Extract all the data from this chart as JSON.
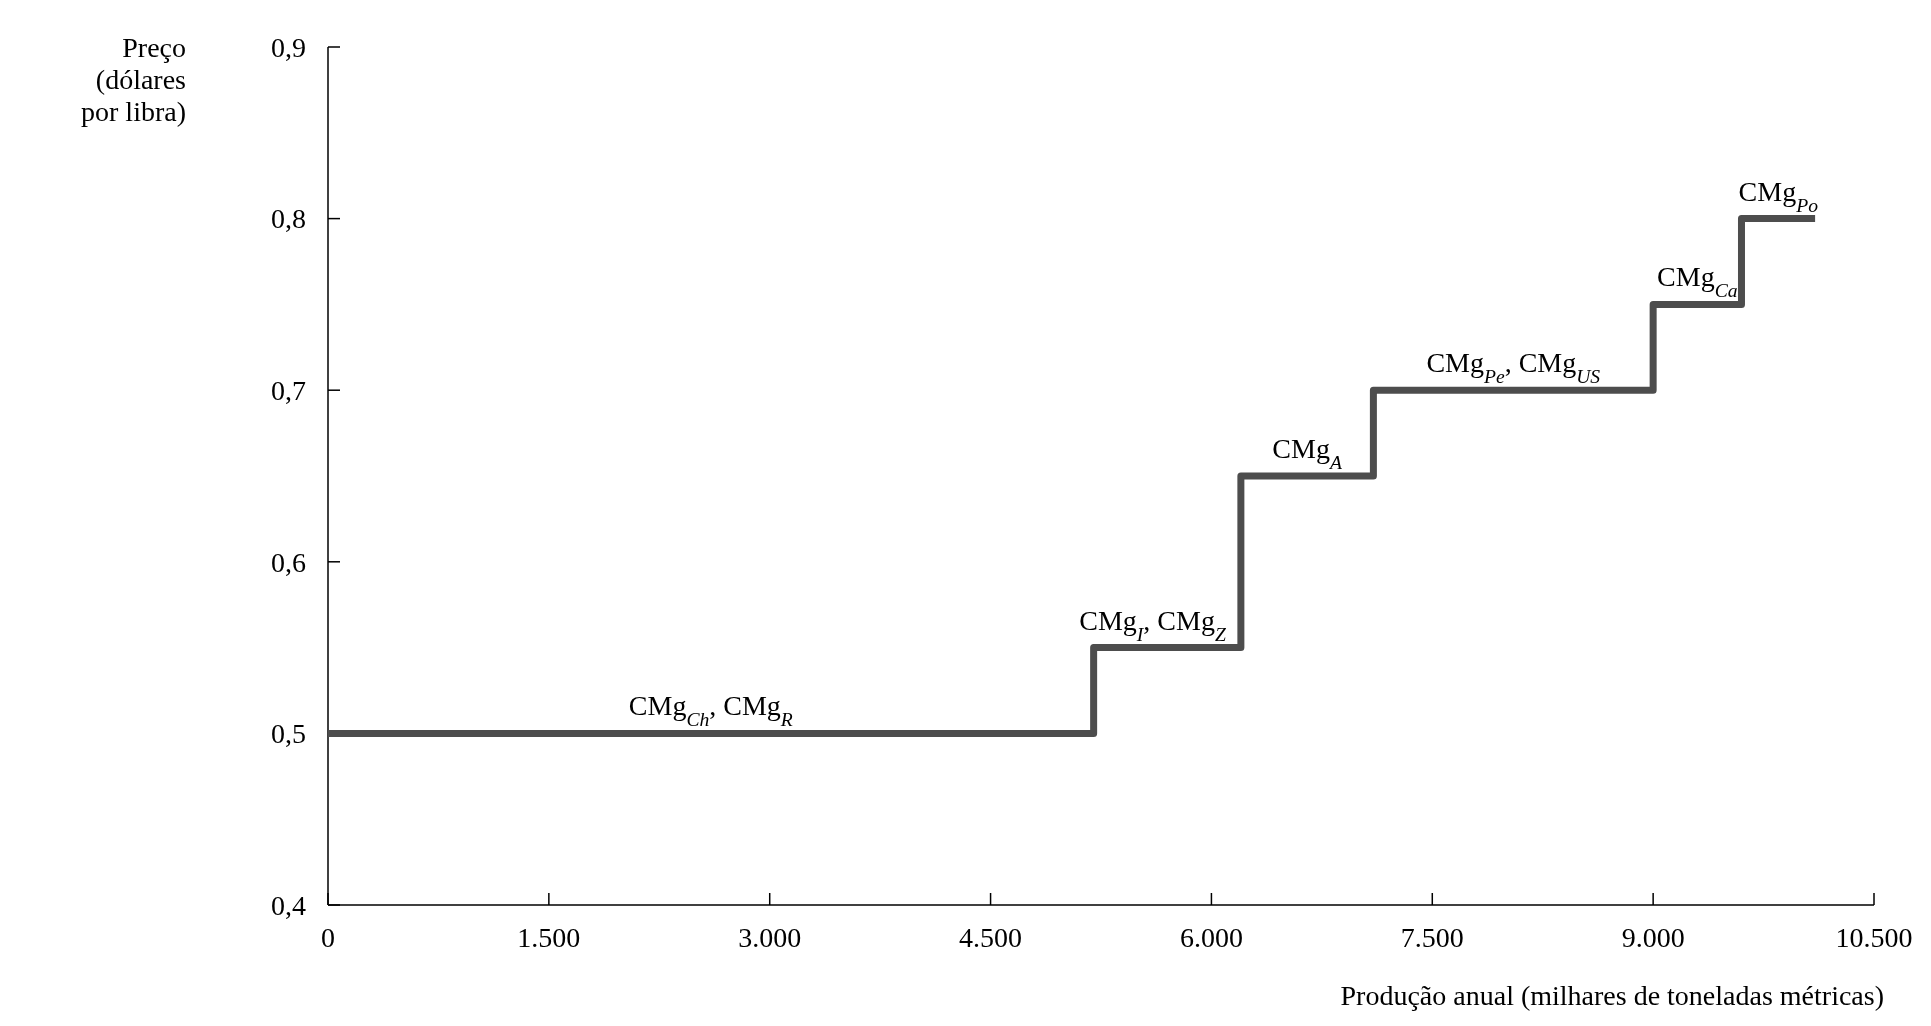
{
  "chart_data": {
    "type": "step",
    "xlabel": "Produção anual (milhares de toneladas métricas)",
    "ylabel": "Preço (dólares por libra)",
    "x": [
      0,
      5200,
      6200,
      7100,
      9000,
      9600,
      10100
    ],
    "series": [
      {
        "color": "#4d4d4d",
        "values": [
          0.5,
          0.55,
          0.65,
          0.7,
          0.75,
          0.8,
          0.8
        ]
      }
    ],
    "xlim": [
      0,
      10500
    ],
    "xticks": [
      0,
      {
        "value": 1500,
        "label": "1.500"
      },
      {
        "value": 3000,
        "label": "3.000"
      },
      {
        "value": 4500,
        "label": "4.500"
      },
      {
        "value": 6000,
        "label": "6.000"
      },
      {
        "value": 7500,
        "label": "7.500"
      },
      {
        "value": 9000,
        "label": "9.000"
      },
      {
        "value": 10500,
        "label": "10.500"
      }
    ],
    "ylim": [
      0.4,
      0.9
    ],
    "yticks": [
      {
        "value": 0.4,
        "label": "0,4"
      },
      {
        "value": 0.5,
        "label": "0,5"
      },
      {
        "value": 0.6,
        "label": "0,6"
      },
      {
        "value": 0.7,
        "label": "0,7"
      },
      {
        "value": 0.8,
        "label": "0,8"
      },
      {
        "value": 0.9,
        "label": "0,9"
      }
    ],
    "annotations": [
      {
        "text": "CMg$_{Ch}$, CMg$_{R}$",
        "x": 2600,
        "y": 0.5
      },
      {
        "text": "CMg$_{I}$, CMg$_{Z}$",
        "x": 5600,
        "y": 0.55
      },
      {
        "text": "CMg$_{A}$",
        "x": 6650,
        "y": 0.65
      },
      {
        "text": "CMg$_{Pe}$, CMg$_{US}$",
        "x": 8050,
        "y": 0.7
      },
      {
        "text": "CMg$_{Ca}$",
        "x": 9300,
        "y": 0.75
      },
      {
        "text": "CMg$_{Po}$",
        "x": 9850,
        "y": 0.8
      }
    ],
    "grid": false
  }
}
